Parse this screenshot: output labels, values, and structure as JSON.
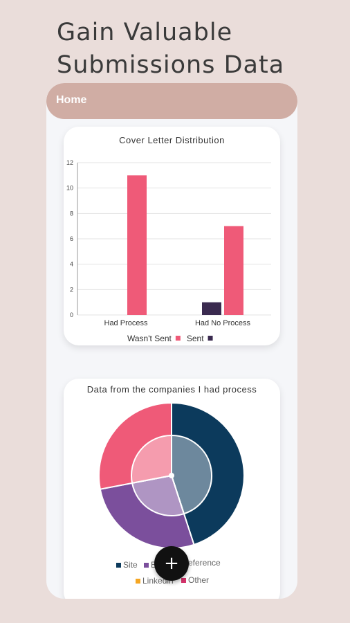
{
  "headline": {
    "line1": "Gain Valuable",
    "line2": "Submissions Data"
  },
  "appbar": {
    "title": "Home"
  },
  "colors": {
    "sent": "#ef5a78",
    "wasnt_sent": "#3a2a4f",
    "site": "#0c3a5c",
    "email": "#7b4f9c",
    "reference": "#ef5a78",
    "linkedin": "#f5a623",
    "other": "#d6336c"
  },
  "chart_data": [
    {
      "type": "bar",
      "title": "Cover Letter Distribution",
      "categories": [
        "Had Process",
        "Had No Process"
      ],
      "series": [
        {
          "name": "Wasn't Sent",
          "values": [
            11,
            7
          ]
        },
        {
          "name": "Sent",
          "values": [
            0,
            1
          ]
        }
      ],
      "ylim": [
        0,
        12
      ],
      "yticks": [
        "0",
        "2",
        "4",
        "6",
        "8",
        "10",
        "12"
      ],
      "grid": true,
      "legend": "bottom"
    },
    {
      "type": "pie",
      "title": "Data from the companies I had process",
      "slices": [
        {
          "label": "Site",
          "value": 45
        },
        {
          "label": "Email",
          "value": 27
        },
        {
          "label": "Reference",
          "value": 28
        },
        {
          "label": "Linkedin",
          "value": 0
        },
        {
          "label": "Other",
          "value": 0
        }
      ],
      "legend_labels": [
        "Site",
        "E",
        "eference",
        "Linkedin",
        "Other"
      ],
      "legend": "bottom"
    }
  ],
  "fab": {
    "label": "+"
  }
}
